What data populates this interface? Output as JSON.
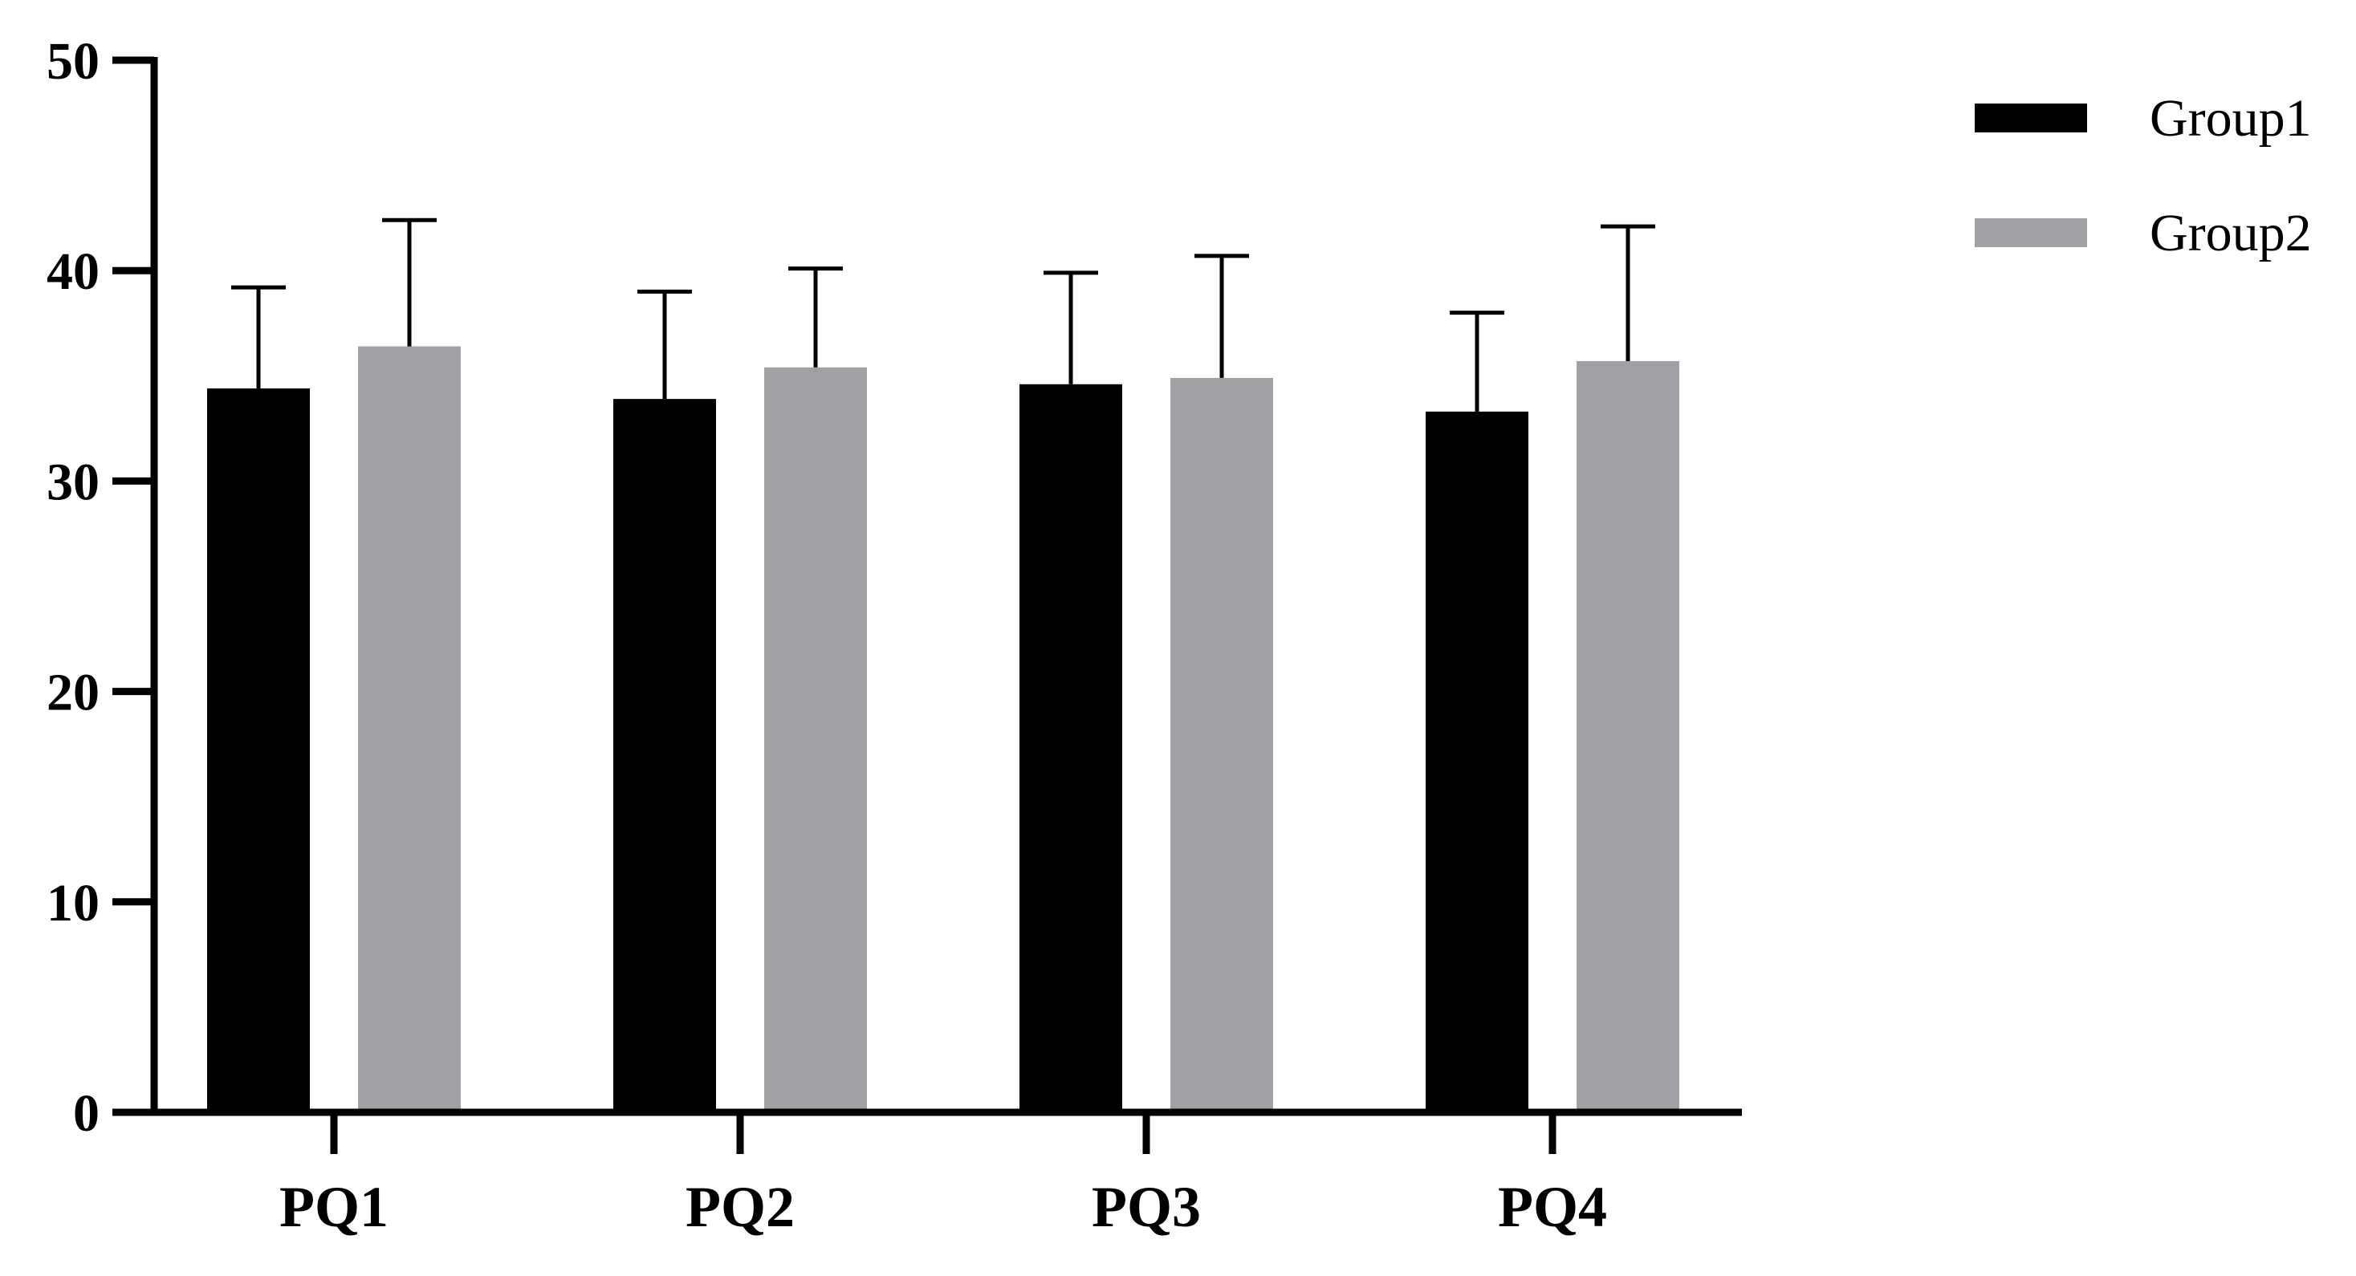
{
  "chart_data": {
    "type": "bar",
    "title": "",
    "xlabel": "",
    "ylabel": "",
    "categories": [
      "PQ1",
      "PQ2",
      "PQ3",
      "PQ4"
    ],
    "ylim": [
      0,
      50
    ],
    "yticks": [
      "0",
      "10",
      "20",
      "30",
      "40",
      "50"
    ],
    "grid": false,
    "legend_position": "top-right",
    "series": [
      {
        "name": "Group1",
        "color": "#000000",
        "values": [
          34.4,
          33.9,
          34.6,
          33.3
        ],
        "error_upper": [
          4.8,
          5.1,
          5.3,
          4.7
        ]
      },
      {
        "name": "Group2",
        "color": "#a1a0a4",
        "values": [
          36.4,
          35.4,
          34.9,
          35.7
        ],
        "error_upper": [
          6.0,
          4.7,
          5.8,
          6.4
        ]
      }
    ]
  }
}
